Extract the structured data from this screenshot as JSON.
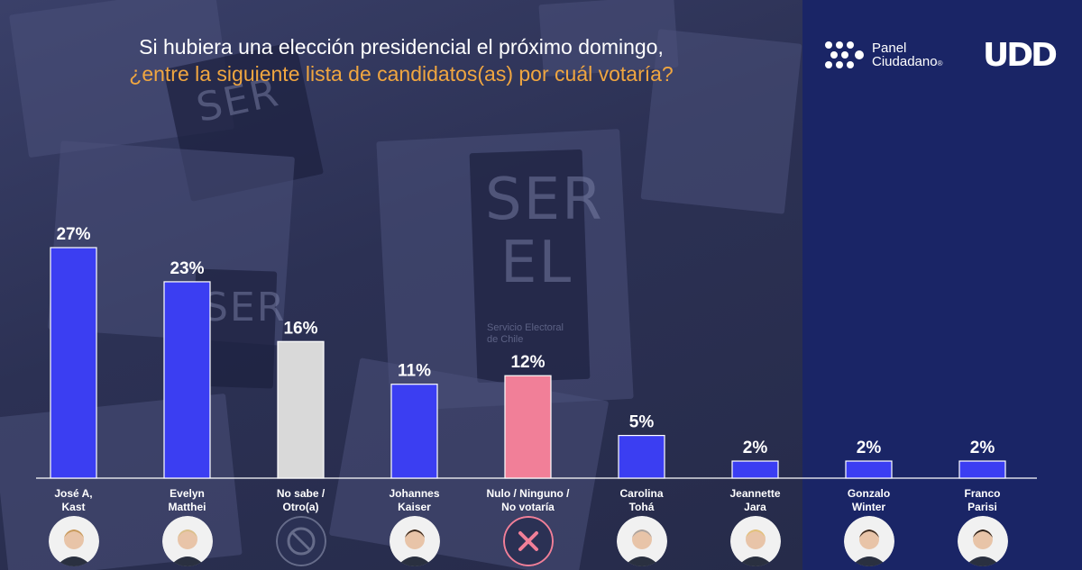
{
  "title": {
    "line1": "Si hubiera una elección presidencial el próximo domingo,",
    "line2": "¿entre la siguiente lista de candidatos(as) por cuál votaría?"
  },
  "logos": {
    "panel_line1": "Panel",
    "panel_line2": "Ciudadano",
    "registered": "®",
    "udd": "UDD"
  },
  "background": {
    "ballot_text_1": "SER",
    "ballot_text_2": "EL",
    "ballot_small": "Servicio Electoral de Chile"
  },
  "colors": {
    "blue": "#3b3ef2",
    "gray": "#d9d9d9",
    "pink": "#f17f98",
    "right_panel": "#1a2566"
  },
  "chart_data": {
    "type": "bar",
    "categories": [
      "José A, Kast",
      "Evelyn Matthei",
      "No sabe / Otro(a)",
      "Johannes Kaiser",
      "Nulo / Ninguno / No votaría",
      "Carolina Tohá",
      "Jeannette Jara",
      "Gonzalo Winter",
      "Franco Parisi"
    ],
    "label_lines": [
      [
        "José A,",
        "Kast"
      ],
      [
        "Evelyn",
        "Matthei"
      ],
      [
        "No sabe /",
        "Otro(a)"
      ],
      [
        "Johannes",
        "Kaiser"
      ],
      [
        "Nulo / Ninguno /",
        "No votaría"
      ],
      [
        "Carolina",
        "Tohá"
      ],
      [
        "Jeannette",
        "Jara"
      ],
      [
        "Gonzalo",
        "Winter"
      ],
      [
        "Franco",
        "Parisi"
      ]
    ],
    "values": [
      27,
      23,
      16,
      11,
      12,
      5,
      2,
      2,
      2
    ],
    "value_labels": [
      "27%",
      "23%",
      "16%",
      "11%",
      "12%",
      "5%",
      "2%",
      "2%",
      "2%"
    ],
    "bar_colors": [
      "#3b3ef2",
      "#3b3ef2",
      "#d9d9d9",
      "#3b3ef2",
      "#f17f98",
      "#3b3ef2",
      "#3b3ef2",
      "#3b3ef2",
      "#3b3ef2"
    ],
    "avatars": [
      "candidate-photo",
      "candidate-photo",
      "no-answer-icon",
      "candidate-photo",
      "null-vote-icon",
      "candidate-photo",
      "candidate-photo",
      "candidate-photo",
      "candidate-photo"
    ],
    "ylim": [
      0,
      30
    ],
    "grid": false,
    "title": "",
    "xlabel": "",
    "ylabel": ""
  }
}
